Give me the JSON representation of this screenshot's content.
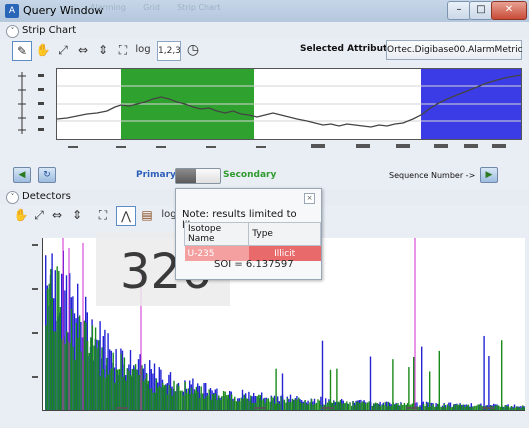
{
  "window": {
    "title": "Query Window",
    "ghost_tabs": [
      "Alarming",
      "Grid",
      "Strip Chart"
    ],
    "minimize": "–",
    "maximize": "□",
    "close": "✕"
  },
  "strip_chart": {
    "section_label": "Strip Chart",
    "toolbar": {
      "log_label": "log",
      "scale_label": "1,2,3"
    },
    "selected_attribute_label": "Selected Attribute ->",
    "selected_attribute_value": "Ortec.Digibase00.AlarmMetric",
    "colors": {
      "highlight_green": "#2fa12f",
      "highlight_blue": "#3c3ce6",
      "line": "#444444"
    }
  },
  "nav": {
    "primary_label": "Primary",
    "secondary_label": "Secondary",
    "sequence_label": "Sequence Number ->",
    "primary_color": "#2d5fb8",
    "secondary_color": "#2f9a2f"
  },
  "detectors": {
    "section_label": "Detectors",
    "toolbar": {
      "log_label": "log"
    },
    "counter_value": "326",
    "colors": {
      "green": "#1a8a1a",
      "blue": "#2323d4",
      "magenta": "#d02ad0"
    }
  },
  "popup": {
    "close": "×",
    "note": "Note: results limited to library",
    "columns": [
      "Isotope Name",
      "Type"
    ],
    "rows": [
      {
        "isotope": "U-235",
        "type": "Illicit"
      }
    ],
    "sol_text": "SOI = 6.137597"
  }
}
